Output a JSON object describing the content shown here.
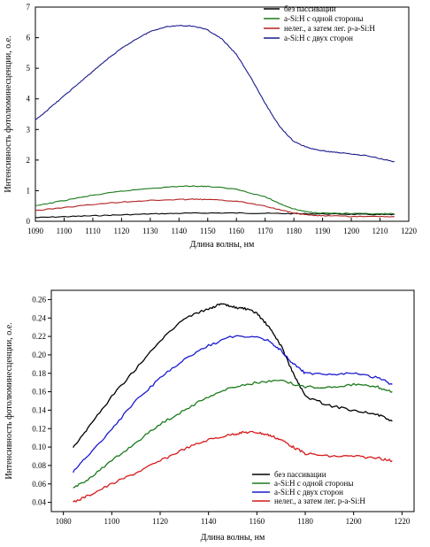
{
  "chart_data": [
    {
      "type": "line",
      "xlabel": "Длина волны, нм",
      "ylabel": "Интенсивность фотолюминесценции, о.е.",
      "xlim": [
        1090,
        1220
      ],
      "ylim": [
        0,
        7
      ],
      "xticks": [
        1090,
        1100,
        1110,
        1120,
        1130,
        1140,
        1150,
        1160,
        1170,
        1180,
        1190,
        1200,
        1210,
        1220
      ],
      "yticks": [
        0,
        1,
        2,
        3,
        4,
        5,
        6,
        7
      ],
      "grid": false,
      "legend_position": "top-right",
      "series": [
        {
          "name": "без пассивации",
          "color": "#000000",
          "x": [
            1090,
            1100,
            1110,
            1120,
            1130,
            1140,
            1150,
            1160,
            1170,
            1180,
            1190,
            1200,
            1210,
            1215
          ],
          "y": [
            0.12,
            0.15,
            0.18,
            0.21,
            0.24,
            0.26,
            0.27,
            0.27,
            0.26,
            0.25,
            0.24,
            0.23,
            0.22,
            0.22
          ]
        },
        {
          "name": "a-Si:H с одной стороны",
          "color": "#1a7a1a",
          "x": [
            1090,
            1100,
            1110,
            1120,
            1130,
            1140,
            1145,
            1150,
            1160,
            1170,
            1175,
            1180,
            1185,
            1190,
            1200,
            1210,
            1215
          ],
          "y": [
            0.5,
            0.68,
            0.85,
            0.98,
            1.08,
            1.14,
            1.15,
            1.14,
            1.05,
            0.8,
            0.58,
            0.4,
            0.3,
            0.27,
            0.25,
            0.24,
            0.24
          ]
        },
        {
          "name": "нелег., а затем лег. p-a-Si:H",
          "color": "#b22222",
          "x": [
            1090,
            1100,
            1110,
            1120,
            1130,
            1140,
            1145,
            1150,
            1160,
            1170,
            1175,
            1180,
            1185,
            1190,
            1200,
            1210,
            1215
          ],
          "y": [
            0.35,
            0.45,
            0.55,
            0.63,
            0.68,
            0.71,
            0.72,
            0.71,
            0.66,
            0.5,
            0.38,
            0.27,
            0.2,
            0.18,
            0.16,
            0.15,
            0.15
          ]
        },
        {
          "name": "a-Si:H с двух сторон",
          "color": "#1a1a8c",
          "x": [
            1090,
            1095,
            1100,
            1105,
            1110,
            1115,
            1120,
            1125,
            1130,
            1135,
            1140,
            1145,
            1150,
            1155,
            1160,
            1165,
            1170,
            1175,
            1180,
            1185,
            1190,
            1195,
            1200,
            1205,
            1210,
            1215
          ],
          "y": [
            3.3,
            3.7,
            4.1,
            4.5,
            4.9,
            5.3,
            5.65,
            5.95,
            6.2,
            6.35,
            6.4,
            6.38,
            6.25,
            5.95,
            5.45,
            4.7,
            3.85,
            3.1,
            2.6,
            2.4,
            2.3,
            2.25,
            2.2,
            2.15,
            2.05,
            1.95
          ]
        }
      ]
    },
    {
      "type": "line",
      "xlabel": "Длина волны, нм",
      "ylabel": "Интенсивность фотолюминесценции, о.е.",
      "xlim": [
        1075,
        1225
      ],
      "ylim": [
        0.03,
        0.27
      ],
      "xticks": [
        1080,
        1100,
        1120,
        1140,
        1160,
        1180,
        1200,
        1220
      ],
      "yticks": [
        0.04,
        0.06,
        0.08,
        0.1,
        0.12,
        0.14,
        0.16,
        0.18,
        0.2,
        0.22,
        0.24,
        0.26
      ],
      "grid": false,
      "legend_position": "bottom-right",
      "series": [
        {
          "name": "без пассивации",
          "color": "#000000",
          "x": [
            1084,
            1090,
            1100,
            1110,
            1120,
            1130,
            1140,
            1145,
            1150,
            1155,
            1160,
            1165,
            1170,
            1175,
            1180,
            1190,
            1200,
            1210,
            1216
          ],
          "y": [
            0.1,
            0.12,
            0.155,
            0.185,
            0.215,
            0.24,
            0.25,
            0.255,
            0.252,
            0.25,
            0.245,
            0.23,
            0.21,
            0.18,
            0.155,
            0.145,
            0.14,
            0.135,
            0.128
          ]
        },
        {
          "name": "a-Si:H с одной стороны",
          "color": "#1a7a1a",
          "x": [
            1084,
            1090,
            1100,
            1110,
            1120,
            1130,
            1140,
            1150,
            1160,
            1170,
            1180,
            1190,
            1200,
            1210,
            1216
          ],
          "y": [
            0.055,
            0.065,
            0.085,
            0.105,
            0.125,
            0.14,
            0.155,
            0.165,
            0.17,
            0.172,
            0.165,
            0.165,
            0.168,
            0.165,
            0.16
          ]
        },
        {
          "name": "a-Si:H с двух сторон",
          "color": "#1a1ad0",
          "x": [
            1084,
            1090,
            1100,
            1110,
            1120,
            1130,
            1140,
            1150,
            1160,
            1165,
            1170,
            1175,
            1180,
            1190,
            1200,
            1210,
            1216
          ],
          "y": [
            0.073,
            0.09,
            0.12,
            0.15,
            0.175,
            0.195,
            0.21,
            0.22,
            0.22,
            0.215,
            0.205,
            0.19,
            0.18,
            0.178,
            0.18,
            0.175,
            0.168
          ]
        },
        {
          "name": "нелег., а затем лег. p-a-Si:H",
          "color": "#d61a1a",
          "x": [
            1084,
            1090,
            1100,
            1110,
            1120,
            1130,
            1140,
            1150,
            1155,
            1160,
            1165,
            1170,
            1175,
            1180,
            1190,
            1200,
            1210,
            1216
          ],
          "y": [
            0.04,
            0.047,
            0.06,
            0.072,
            0.085,
            0.098,
            0.108,
            0.114,
            0.116,
            0.116,
            0.113,
            0.108,
            0.1,
            0.093,
            0.09,
            0.09,
            0.088,
            0.085
          ]
        }
      ]
    }
  ]
}
